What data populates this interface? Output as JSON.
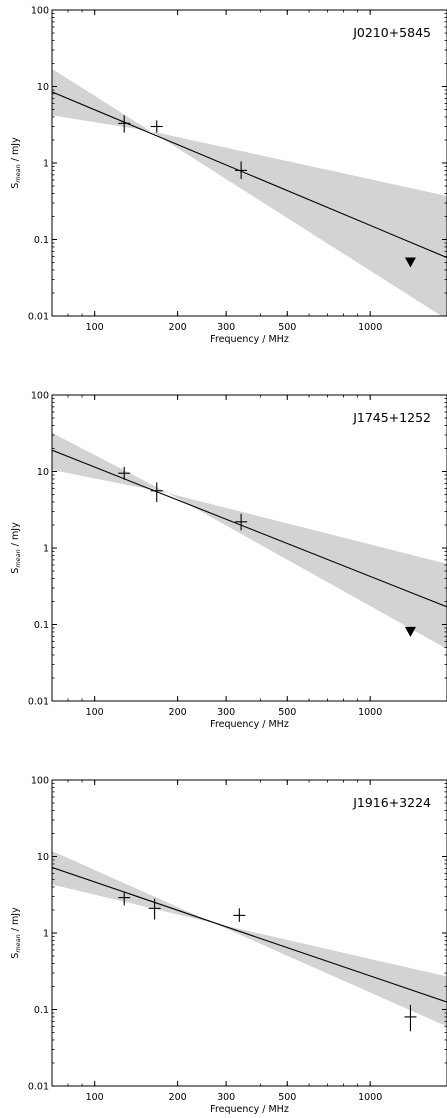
{
  "chart_data": [
    {
      "type": "scatter",
      "title": "J0210+5845",
      "xlabel": "Frequency / MHz",
      "ylabel": "S",
      "ylabel_sub": "mean",
      "ylabel_unit": " / mJy",
      "xscale": "log",
      "yscale": "log",
      "xlim": [
        70,
        1900
      ],
      "ylim": [
        0.01,
        100
      ],
      "xticks": [
        100,
        200,
        300,
        500,
        1000
      ],
      "xtick_labels": [
        "100",
        "200",
        "300",
        "500",
        "1000"
      ],
      "yticks": [
        0.01,
        0.1,
        1,
        10,
        100
      ],
      "ytick_labels": [
        "0.01",
        "0.1",
        "1",
        "10",
        "100"
      ],
      "grid": false,
      "points": [
        {
          "x": 128,
          "y": 3.3,
          "yerr_low": 2.5,
          "yerr_high": 4.2
        },
        {
          "x": 168,
          "y": 3.0,
          "yerr_low": 2.5,
          "yerr_high": 3.6
        },
        {
          "x": 340,
          "y": 0.8,
          "yerr_low": 0.62,
          "yerr_high": 1.05
        }
      ],
      "upper_limits": [
        {
          "x": 1400,
          "y": 0.05
        }
      ],
      "fit_line": {
        "x": [
          70,
          1900
        ],
        "y": [
          8.5,
          0.058
        ]
      },
      "fit_band": {
        "x": [
          70,
          160,
          1900
        ],
        "lower": [
          4.2,
          2.6,
          0.009
        ],
        "upper": [
          17,
          2.6,
          0.37
        ]
      }
    },
    {
      "type": "scatter",
      "title": "J1745+1252",
      "xlabel": "Frequency / MHz",
      "ylabel": "S",
      "ylabel_sub": "mean",
      "ylabel_unit": " / mJy",
      "xscale": "log",
      "yscale": "log",
      "xlim": [
        70,
        1900
      ],
      "ylim": [
        0.01,
        100
      ],
      "xticks": [
        100,
        200,
        300,
        500,
        1000
      ],
      "xtick_labels": [
        "100",
        "200",
        "300",
        "500",
        "1000"
      ],
      "yticks": [
        0.01,
        0.1,
        1,
        10,
        100
      ],
      "ytick_labels": [
        "0.01",
        "0.1",
        "1",
        "10",
        "100"
      ],
      "grid": false,
      "points": [
        {
          "x": 128,
          "y": 9.5,
          "yerr_low": 7.8,
          "yerr_high": 11.5
        },
        {
          "x": 168,
          "y": 5.6,
          "yerr_low": 4.0,
          "yerr_high": 7.2
        },
        {
          "x": 340,
          "y": 2.2,
          "yerr_low": 1.7,
          "yerr_high": 2.8
        }
      ],
      "upper_limits": [
        {
          "x": 1400,
          "y": 0.08
        }
      ],
      "fit_line": {
        "x": [
          70,
          1900
        ],
        "y": [
          19,
          0.17
        ]
      },
      "fit_band": {
        "x": [
          70,
          185,
          1900
        ],
        "lower": [
          10.5,
          5.2,
          0.048
        ],
        "upper": [
          32,
          5.2,
          0.62
        ]
      }
    },
    {
      "type": "scatter",
      "title": "J1916+3224",
      "xlabel": "Frequency / MHz",
      "ylabel": "S",
      "ylabel_sub": "mean",
      "ylabel_unit": " / mJy",
      "xscale": "log",
      "yscale": "log",
      "xlim": [
        70,
        1900
      ],
      "ylim": [
        0.01,
        100
      ],
      "xticks": [
        100,
        200,
        300,
        500,
        1000
      ],
      "xtick_labels": [
        "100",
        "200",
        "300",
        "500",
        "1000"
      ],
      "yticks": [
        0.01,
        0.1,
        1,
        10,
        100
      ],
      "ytick_labels": [
        "0.01",
        "0.1",
        "1",
        "10",
        "100"
      ],
      "grid": false,
      "points": [
        {
          "x": 128,
          "y": 2.9,
          "yerr_low": 2.3,
          "yerr_high": 3.5
        },
        {
          "x": 165,
          "y": 2.1,
          "yerr_low": 1.5,
          "yerr_high": 2.8
        },
        {
          "x": 335,
          "y": 1.7,
          "yerr_low": 1.4,
          "yerr_high": 2.1
        },
        {
          "x": 1400,
          "y": 0.08,
          "yerr_low": 0.052,
          "yerr_high": 0.115
        }
      ],
      "upper_limits": [],
      "fit_line": {
        "x": [
          70,
          1900
        ],
        "y": [
          7.2,
          0.125
        ]
      },
      "fit_band": {
        "x": [
          70,
          270,
          1900
        ],
        "lower": [
          4.3,
          1.35,
          0.06
        ],
        "upper": [
          11.8,
          1.35,
          0.27
        ]
      }
    }
  ]
}
